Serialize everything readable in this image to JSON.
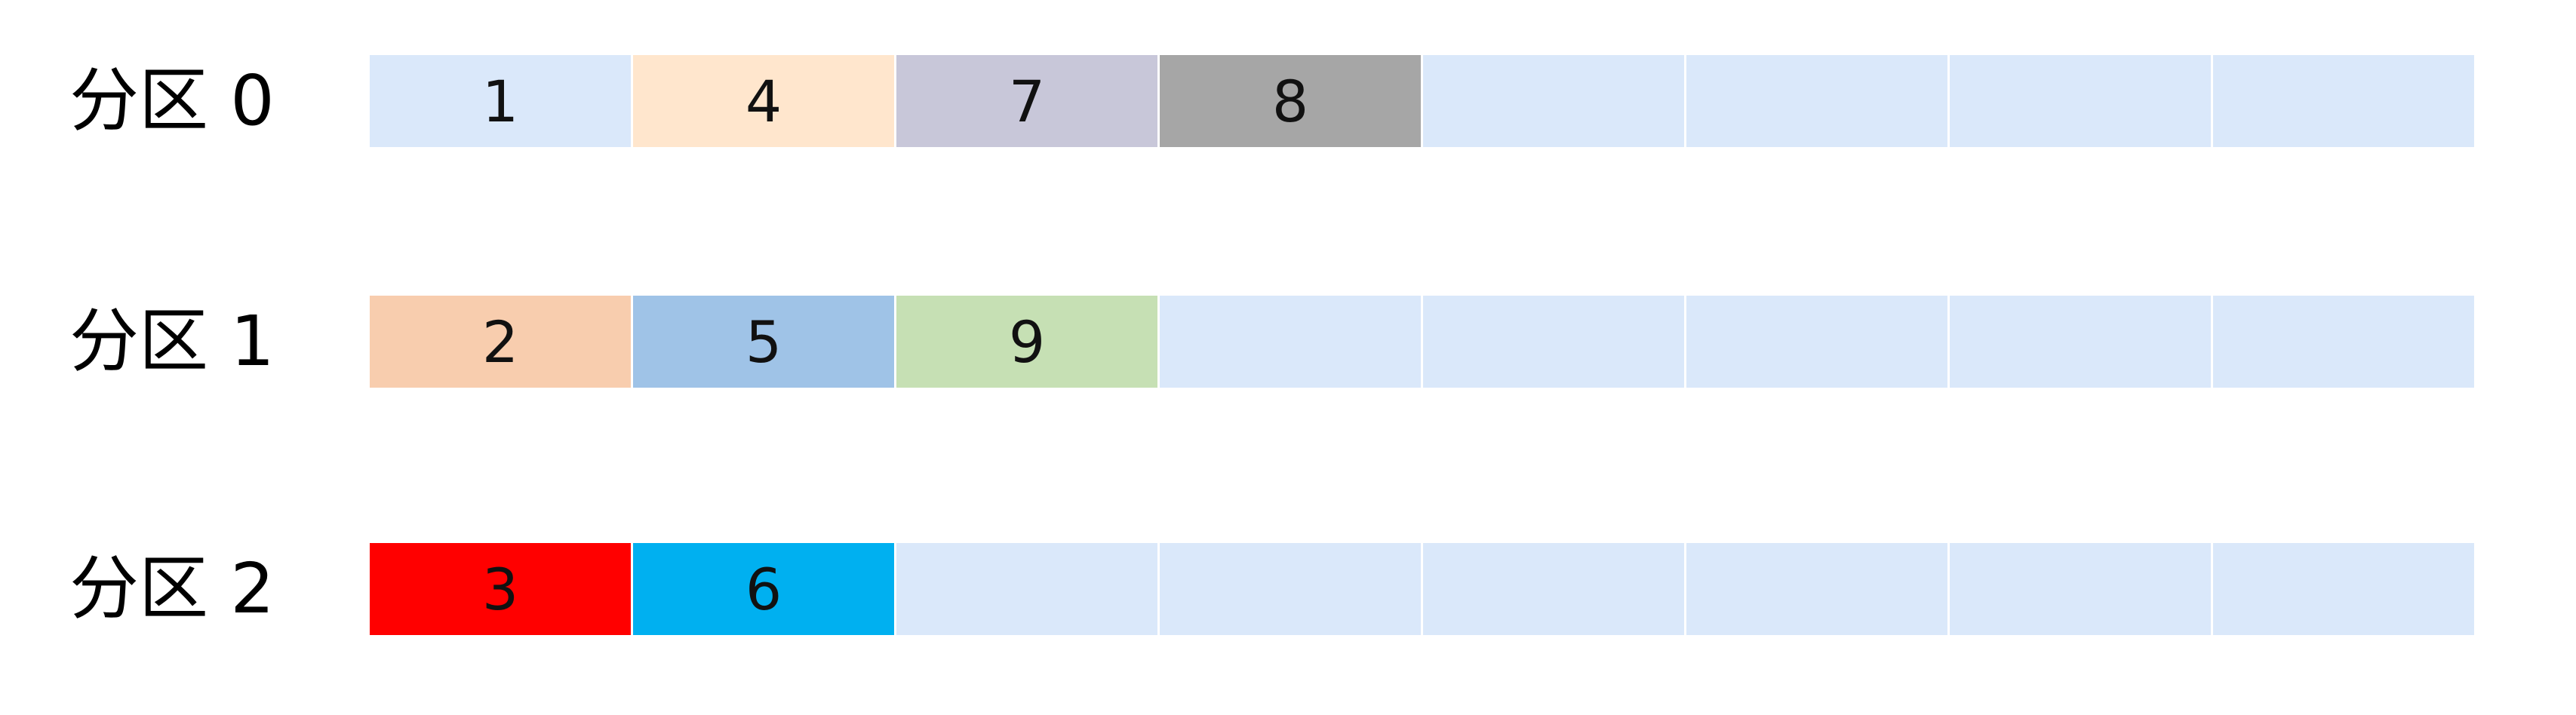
{
  "empty_color": "#DAE8FA",
  "slots_per_partition": 8,
  "partitions": [
    {
      "label": "分区 0",
      "items": [
        {
          "value": "1",
          "color": "#DAE8FA"
        },
        {
          "value": "4",
          "color": "#FFE6CD"
        },
        {
          "value": "7",
          "color": "#C8C7D9"
        },
        {
          "value": "8",
          "color": "#A6A6A6"
        }
      ]
    },
    {
      "label": "分区 1",
      "items": [
        {
          "value": "2",
          "color": "#F8CDAE"
        },
        {
          "value": "5",
          "color": "#9FC3E7"
        },
        {
          "value": "9",
          "color": "#C6E0B4"
        }
      ]
    },
    {
      "label": "分区 2",
      "items": [
        {
          "value": "3",
          "color": "#FF0000"
        },
        {
          "value": "6",
          "color": "#00B0F0"
        }
      ]
    }
  ]
}
